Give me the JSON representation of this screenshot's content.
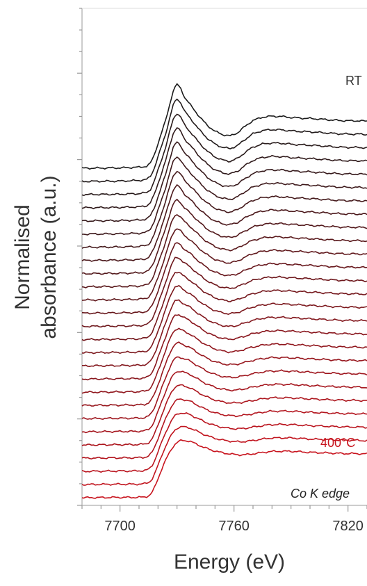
{
  "chart_data": {
    "type": "line",
    "title": "",
    "xlabel": "Energy (eV)",
    "ylabel_lines": [
      "Normalised",
      "absorbance (a.u.)"
    ],
    "xlim": [
      7680,
      7830
    ],
    "x_ticks": [
      7700,
      7760,
      7820
    ],
    "y_ticks_shown": false,
    "grid": false,
    "legend": "none",
    "offset_stacked": true,
    "series_count": 26,
    "series_color_start": "#1a1a1a",
    "series_color_end": "#c8141e",
    "annotations": {
      "top_label": "RT",
      "bottom_label": "400°C",
      "edge_label": "Co K edge"
    },
    "colors": {
      "top_label": "#333333",
      "bottom_label": "#c8141e",
      "edge_label": "#222222"
    },
    "profile_x": [
      7680,
      7700,
      7710,
      7714,
      7716,
      7718,
      7720,
      7722,
      7724,
      7726,
      7728,
      7730,
      7732,
      7734,
      7738,
      7742,
      7746,
      7750,
      7754,
      7758,
      7762,
      7766,
      7770,
      7775,
      7780,
      7785,
      7790,
      7795,
      7800,
      7805,
      7810,
      7815,
      7820,
      7825,
      7830
    ],
    "profile_top": [
      0.0,
      0.01,
      0.03,
      0.06,
      0.15,
      0.4,
      0.75,
      1.1,
      1.45,
      1.9,
      2.35,
      2.55,
      2.42,
      2.15,
      1.85,
      1.55,
      1.3,
      1.12,
      1.02,
      0.98,
      1.08,
      1.28,
      1.45,
      1.55,
      1.58,
      1.57,
      1.54,
      1.52,
      1.51,
      1.49,
      1.47,
      1.45,
      1.44,
      1.44,
      1.43
    ],
    "profile_bottom": [
      0.0,
      0.01,
      0.01,
      0.02,
      0.04,
      0.12,
      0.35,
      0.65,
      0.95,
      1.2,
      1.42,
      1.6,
      1.7,
      1.74,
      1.72,
      1.62,
      1.52,
      1.44,
      1.38,
      1.34,
      1.31,
      1.3,
      1.32,
      1.36,
      1.4,
      1.41,
      1.41,
      1.4,
      1.38,
      1.37,
      1.36,
      1.35,
      1.34,
      1.34,
      1.33
    ],
    "y_unit_per_series_offset": 0.4
  }
}
